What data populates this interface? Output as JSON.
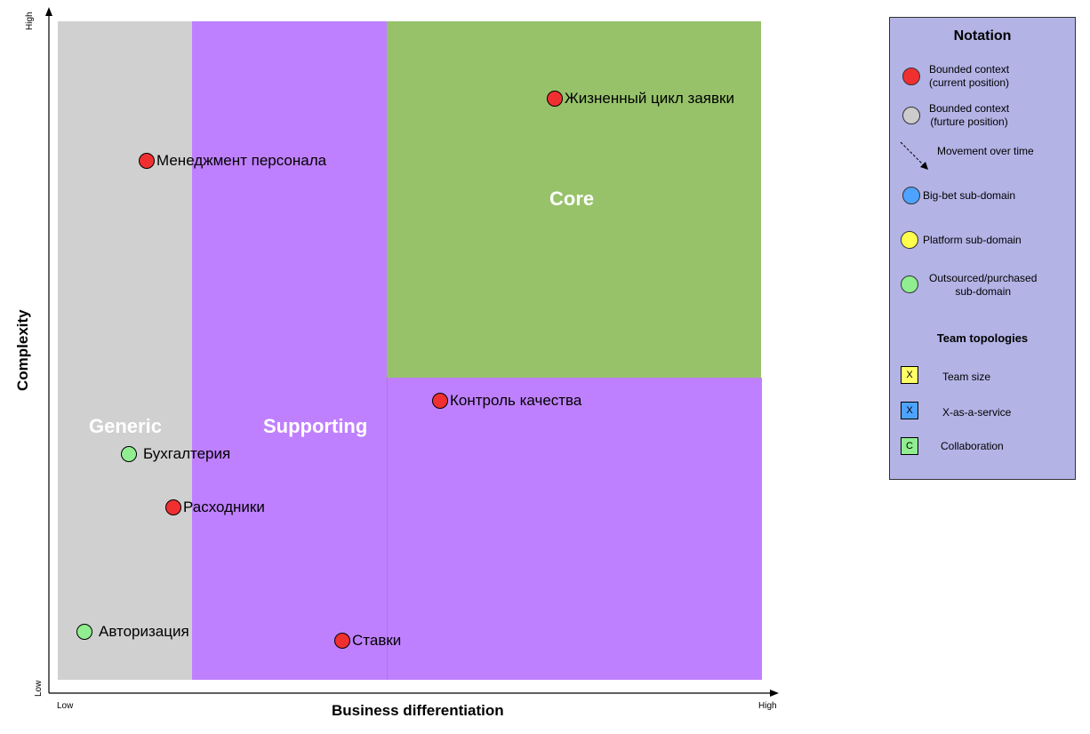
{
  "regions": {
    "generic": "Generic",
    "supporting": "Supporting",
    "core": "Core"
  },
  "axes": {
    "x_title": "Business differentiation",
    "y_title": "Complexity",
    "x_low": "Low",
    "x_high": "High",
    "y_low": "Low",
    "y_high": "High"
  },
  "points": {
    "lifecycle": {
      "label": "Жизненный цикл заявки",
      "kind": "current"
    },
    "staff": {
      "label": "Менеджмент персонала",
      "kind": "current"
    },
    "quality": {
      "label": "Контроль качества",
      "kind": "current"
    },
    "accounting": {
      "label": "Бухгалтерия",
      "kind": "outsourced"
    },
    "consumables": {
      "label": "Расходники",
      "kind": "current"
    },
    "auth": {
      "label": "Авторизация",
      "kind": "outsourced"
    },
    "rates": {
      "label": "Ставки",
      "kind": "current"
    }
  },
  "notation": {
    "title": "Notation",
    "bc_current_1": "Bounded context",
    "bc_current_2": "(current position)",
    "bc_future_1": "Bounded context",
    "bc_future_2": "(furture position)",
    "movement": "Movement over time",
    "big_bet": "Big-bet sub-domain",
    "platform": "Platform sub-domain",
    "outsourced_1": "Outsourced/purchased",
    "outsourced_2": "sub-domain",
    "team_title": "Team topologies",
    "team_size_mark": "X",
    "team_size": "Team size",
    "xaas_mark": "X",
    "xaas": "X-as-a-service",
    "collab_mark": "C",
    "collab": "Collaboration"
  },
  "colors": {
    "generic": "#d0d0d0",
    "supporting": "#bf80ff",
    "core": "#97c26a",
    "current": "#f03030",
    "future": "#cccccc",
    "big_bet": "#4da3ff",
    "platform": "#ffff4d",
    "outsourced": "#90ee90",
    "notation_bg": "#b3b3e6"
  }
}
